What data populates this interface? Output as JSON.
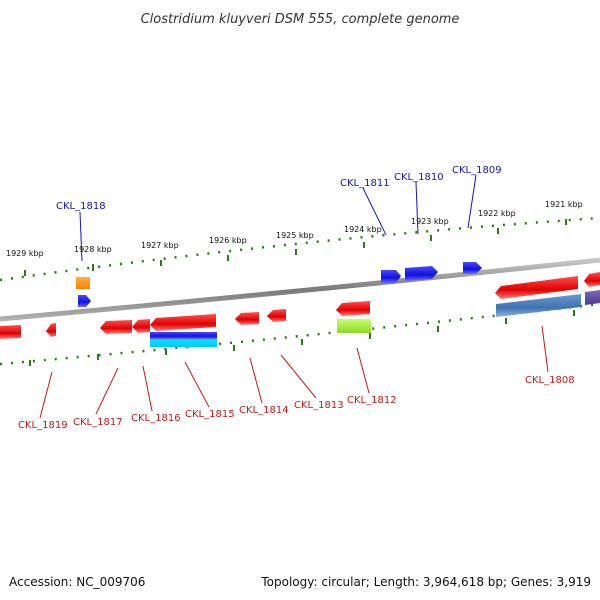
{
  "title": "Clostridium kluyveri DSM 555, complete genome",
  "footer": {
    "accession": "Accession: NC_009706",
    "summary": "Topology: circular; Length: 3,964,618 bp; Genes: 3,919"
  },
  "scale_labels": [
    "1929 kbp",
    "1928 kbp",
    "1927 kbp",
    "1926 kbp",
    "1925 kbp",
    "1924 kbp",
    "1923 kbp",
    "1922 kbp",
    "1921 kbp"
  ],
  "genes_top": [
    "CKL_1818",
    "CKL_1811",
    "CKL_1810",
    "CKL_1809"
  ],
  "genes_bottom": [
    "CKL_1819",
    "CKL_1817",
    "CKL_1816",
    "CKL_1815",
    "CKL_1814",
    "CKL_1813",
    "CKL_1812",
    "CKL_1808"
  ],
  "colors": {
    "forward": "#1010e0",
    "reverse": "#e81010",
    "backbone": "#8a8a8a",
    "tick": "#2a7a1a",
    "label_forward": "#1515c8",
    "label_reverse": "#d01515"
  }
}
